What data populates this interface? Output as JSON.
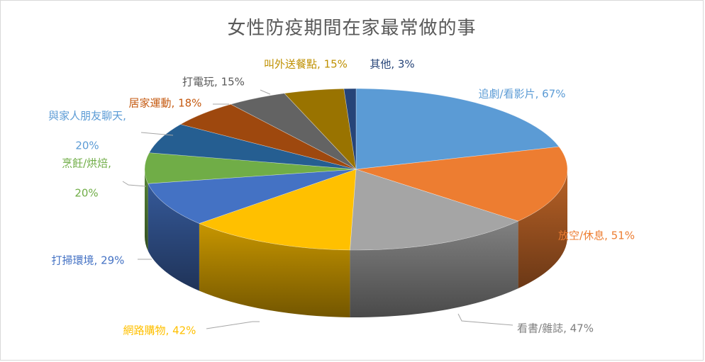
{
  "chart_data": {
    "type": "pie",
    "title": "女性防疫期間在家最常做的事",
    "series": [
      {
        "categories": [
          "追劇/看影片",
          "放空/休息",
          "看書/雜誌",
          "網路購物",
          "打掃環境",
          "烹飪/烘焙",
          "與家人朋友聊天",
          "居家運動",
          "打電玩",
          "叫外送餐點",
          "其他"
        ],
        "values": [
          67,
          51,
          47,
          42,
          29,
          20,
          20,
          18,
          15,
          15,
          3
        ],
        "value_format": "percent"
      }
    ],
    "labels": [
      {
        "lines": [
          "追劇/看影片, 67%"
        ]
      },
      {
        "lines": [
          "放空/休息, 51%"
        ]
      },
      {
        "lines": [
          "看書/雜誌, 47%"
        ]
      },
      {
        "lines": [
          "網路購物, 42%"
        ]
      },
      {
        "lines": [
          "打掃環境, 29%"
        ]
      },
      {
        "lines": [
          "烹飪/烘焙,",
          "20%"
        ]
      },
      {
        "lines": [
          "與家人朋友聊天,",
          "20%"
        ]
      },
      {
        "lines": [
          "居家運動, 18%"
        ]
      },
      {
        "lines": [
          "打電玩, 15%"
        ]
      },
      {
        "lines": [
          "叫外送餐點, 15%"
        ]
      },
      {
        "lines": [
          "其他, 3%"
        ]
      }
    ],
    "colors": [
      "#5b9bd5",
      "#ed7d31",
      "#a5a5a5",
      "#ffc000",
      "#4472c4",
      "#70ad47",
      "#255e91",
      "#9e480e",
      "#636363",
      "#997300",
      "#264478"
    ],
    "label_colors": [
      "#5b9bd5",
      "#ed7d31",
      "#7f7f7f",
      "#ffc000",
      "#4472c4",
      "#70ad47",
      "#5b9bd5",
      "#c55a11",
      "#595959",
      "#bf9000",
      "#264478"
    ],
    "style": "3d-pie",
    "legend": "none"
  }
}
